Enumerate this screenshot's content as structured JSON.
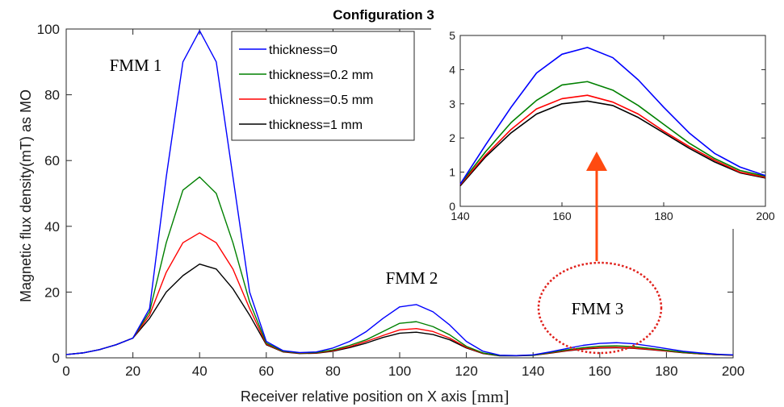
{
  "chart_data": [
    {
      "type": "line",
      "title": "Configuration 3",
      "xlabel": "Receiver  relative position on X axis",
      "xlabel_unit": "[mm]",
      "ylabel": "Magnetic flux density(mT) as MO",
      "xlim": [
        0,
        200
      ],
      "ylim": [
        0,
        100
      ],
      "xticks": [
        0,
        20,
        40,
        60,
        80,
        100,
        120,
        140,
        160,
        180,
        200
      ],
      "yticks": [
        0,
        20,
        40,
        60,
        80,
        100
      ],
      "grid": false,
      "legend_position": "top-center",
      "x": [
        0,
        5,
        10,
        15,
        20,
        25,
        30,
        35,
        40,
        45,
        50,
        55,
        60,
        65,
        70,
        75,
        80,
        85,
        90,
        95,
        100,
        105,
        110,
        115,
        120,
        125,
        130,
        135,
        140,
        145,
        150,
        155,
        160,
        165,
        170,
        175,
        180,
        185,
        190,
        195,
        200
      ],
      "series": [
        {
          "name": "thickness=0",
          "color": "#0000ff",
          "values": [
            1,
            1.5,
            2.5,
            4,
            6,
            15,
            55,
            90,
            99.5,
            90,
            55,
            20,
            5,
            2.2,
            1.6,
            1.8,
            3,
            5,
            8,
            12,
            15.5,
            16.2,
            14,
            10,
            5,
            2,
            0.8,
            0.7,
            0.9,
            1.8,
            2.8,
            3.8,
            4.4,
            4.6,
            4.3,
            3.6,
            2.8,
            2,
            1.5,
            1.1,
            0.9
          ]
        },
        {
          "name": "thickness=0.2 mm",
          "color": "#008000",
          "values": [
            1,
            1.5,
            2.5,
            4,
            6,
            14,
            35,
            51,
            55,
            50,
            35,
            17,
            4.5,
            2,
            1.5,
            1.6,
            2.4,
            3.8,
            5.5,
            8,
            10.5,
            11,
            9.5,
            7,
            3.5,
            1.5,
            0.7,
            0.7,
            0.8,
            1.6,
            2.4,
            3.1,
            3.55,
            3.65,
            3.4,
            2.9,
            2.3,
            1.7,
            1.3,
            1,
            0.85
          ]
        },
        {
          "name": "thickness=0.5 mm",
          "color": "#ff0000",
          "values": [
            1,
            1.5,
            2.5,
            4,
            6,
            13,
            26,
            35,
            38,
            35,
            27,
            15,
            4.2,
            1.9,
            1.4,
            1.5,
            2.2,
            3.4,
            5,
            6.8,
            8.5,
            8.9,
            8,
            6,
            3.2,
            1.4,
            0.7,
            0.7,
            0.8,
            1.5,
            2.2,
            2.8,
            3.15,
            3.2,
            3,
            2.6,
            2.1,
            1.6,
            1.2,
            0.95,
            0.82
          ]
        },
        {
          "name": "thickness=1 mm",
          "color": "#000000",
          "values": [
            1,
            1.5,
            2.5,
            4,
            6,
            12,
            20,
            25,
            28.5,
            27,
            21,
            13,
            4,
            1.8,
            1.3,
            1.4,
            2,
            3.1,
            4.5,
            6.2,
            7.5,
            7.8,
            7.1,
            5.5,
            3,
            1.3,
            0.6,
            0.6,
            0.75,
            1.4,
            2.1,
            2.65,
            3,
            3.05,
            2.9,
            2.5,
            2.05,
            1.55,
            1.2,
            0.95,
            0.8
          ]
        }
      ],
      "annotations": [
        "FMM 1",
        "FMM 2",
        "FMM 3"
      ]
    },
    {
      "type": "line",
      "title": "",
      "xlim": [
        140,
        200
      ],
      "ylim": [
        0,
        5
      ],
      "xticks": [
        140,
        160,
        180,
        200
      ],
      "yticks": [
        0,
        1,
        2,
        3,
        4,
        5
      ],
      "grid": false,
      "x": [
        140,
        145,
        150,
        155,
        160,
        165,
        170,
        175,
        180,
        185,
        190,
        195,
        200
      ],
      "series": [
        {
          "color": "#0000ff",
          "values": [
            0.65,
            1.8,
            2.9,
            3.9,
            4.45,
            4.65,
            4.35,
            3.7,
            2.9,
            2.15,
            1.55,
            1.15,
            0.9
          ]
        },
        {
          "color": "#008000",
          "values": [
            0.65,
            1.6,
            2.45,
            3.1,
            3.55,
            3.65,
            3.4,
            2.95,
            2.4,
            1.85,
            1.4,
            1.05,
            0.88
          ]
        },
        {
          "color": "#ff0000",
          "values": [
            0.63,
            1.5,
            2.25,
            2.85,
            3.15,
            3.25,
            3.05,
            2.7,
            2.2,
            1.75,
            1.35,
            1.0,
            0.85
          ]
        },
        {
          "color": "#000000",
          "values": [
            0.6,
            1.45,
            2.15,
            2.7,
            3.0,
            3.08,
            2.95,
            2.6,
            2.15,
            1.7,
            1.3,
            0.98,
            0.83
          ]
        }
      ]
    }
  ],
  "colors": {
    "highlight_ring": "#e0201b",
    "arrow": "#ff4a10"
  }
}
